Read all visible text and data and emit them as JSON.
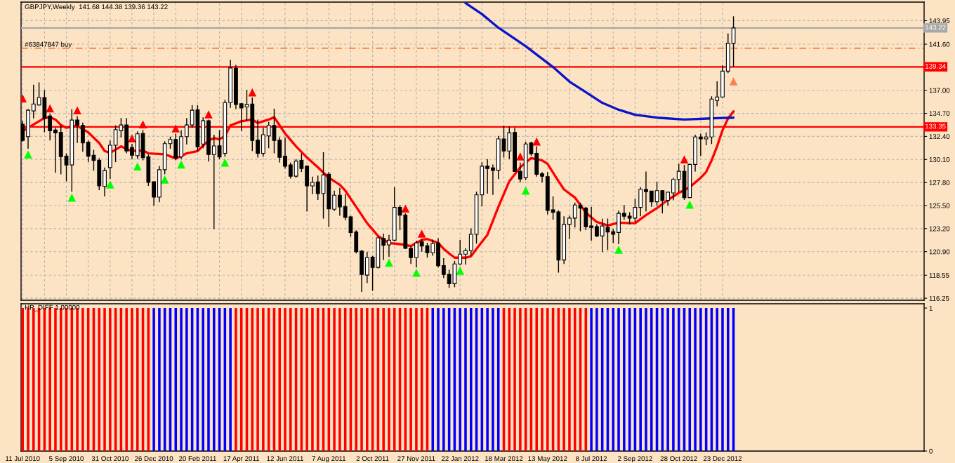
{
  "chart_data": [
    {
      "type": "candlestick",
      "title": "GBPJPY,Weekly  141.68 144.38 139.36 143.22",
      "x": [
        "2010-07-11",
        "2010-07-18",
        "2010-07-25",
        "2010-08-01",
        "2010-08-08",
        "2010-08-15",
        "2010-08-22",
        "2010-08-29",
        "2010-09-05",
        "2010-09-12",
        "2010-09-19",
        "2010-09-26",
        "2010-10-03",
        "2010-10-10",
        "2010-10-17",
        "2010-10-24",
        "2010-10-31",
        "2010-11-07",
        "2010-11-14",
        "2010-11-21",
        "2010-11-28",
        "2010-12-05",
        "2010-12-12",
        "2010-12-19",
        "2010-12-26",
        "2011-01-02",
        "2011-01-09",
        "2011-01-16",
        "2011-01-23",
        "2011-01-30",
        "2011-02-06",
        "2011-02-13",
        "2011-02-20",
        "2011-02-27",
        "2011-03-06",
        "2011-03-13",
        "2011-03-20",
        "2011-03-27",
        "2011-04-03",
        "2011-04-10",
        "2011-04-17",
        "2011-04-24",
        "2011-05-01",
        "2011-05-08",
        "2011-05-15",
        "2011-05-22",
        "2011-05-29",
        "2011-06-05",
        "2011-06-12",
        "2011-06-19",
        "2011-06-26",
        "2011-07-03",
        "2011-07-10",
        "2011-07-17",
        "2011-07-24",
        "2011-07-31",
        "2011-08-07",
        "2011-08-14",
        "2011-08-21",
        "2011-08-28",
        "2011-09-04",
        "2011-09-11",
        "2011-09-18",
        "2011-09-25",
        "2011-10-02",
        "2011-10-09",
        "2011-10-16",
        "2011-10-23",
        "2011-10-30",
        "2011-11-06",
        "2011-11-13",
        "2011-11-20",
        "2011-11-27",
        "2011-12-04",
        "2011-12-11",
        "2011-12-18",
        "2011-12-25",
        "2012-01-01",
        "2012-01-08",
        "2012-01-15",
        "2012-01-22",
        "2012-01-29",
        "2012-02-05",
        "2012-02-12",
        "2012-02-19",
        "2012-02-26",
        "2012-03-04",
        "2012-03-11",
        "2012-03-18",
        "2012-03-25",
        "2012-04-01",
        "2012-04-08",
        "2012-04-15",
        "2012-04-22",
        "2012-04-29",
        "2012-05-06",
        "2012-05-13",
        "2012-05-20",
        "2012-05-27",
        "2012-06-03",
        "2012-06-10",
        "2012-06-17",
        "2012-06-24",
        "2012-07-01",
        "2012-07-08",
        "2012-07-15",
        "2012-07-22",
        "2012-07-29",
        "2012-08-05",
        "2012-08-12",
        "2012-08-19",
        "2012-08-26",
        "2012-09-02",
        "2012-09-09",
        "2012-09-16",
        "2012-09-23",
        "2012-09-30",
        "2012-10-07",
        "2012-10-14",
        "2012-10-21",
        "2012-10-28",
        "2012-11-04",
        "2012-11-11",
        "2012-11-18",
        "2012-11-25",
        "2012-12-02",
        "2012-12-09",
        "2012-12-16",
        "2012-12-23",
        "2012-12-30",
        "2013-01-06"
      ],
      "ohlc": [
        [
          133.61,
          133.96,
          131.87,
          131.99
        ],
        [
          132.38,
          135.12,
          131.17,
          135.01
        ],
        [
          134.94,
          137.56,
          134.19,
          135.63
        ],
        [
          135.54,
          137.79,
          135.47,
          136.28
        ],
        [
          136.28,
          137.03,
          132.8,
          134.19
        ],
        [
          134.43,
          134.66,
          131.99,
          132.96
        ],
        [
          133.03,
          133.26,
          128.78,
          132.75
        ],
        [
          132.8,
          133.5,
          128.62,
          130.38
        ],
        [
          130.43,
          130.71,
          127.92,
          129.55
        ],
        [
          129.55,
          135.12,
          126.88,
          134.03
        ],
        [
          134.03,
          134.43,
          131.75,
          133.54
        ],
        [
          133.5,
          133.78,
          130.87,
          131.75
        ],
        [
          131.82,
          131.99,
          129.83,
          130.43
        ],
        [
          130.52,
          131.06,
          128.97,
          130.01
        ],
        [
          130.01,
          130.24,
          127.04,
          127.46
        ],
        [
          127.41,
          129.29,
          126.41,
          128.99
        ],
        [
          129.29,
          131.99,
          128.15,
          131.52
        ],
        [
          131.52,
          133.5,
          129.83,
          133.08
        ],
        [
          132.98,
          134.24,
          132.29,
          133.54
        ],
        [
          133.54,
          134.24,
          130.71,
          130.94
        ],
        [
          131.29,
          131.64,
          130.13,
          130.52
        ],
        [
          130.48,
          132.91,
          130.13,
          132.66
        ],
        [
          132.68,
          133.03,
          130.01,
          130.29
        ],
        [
          130.36,
          130.59,
          127.46,
          127.81
        ],
        [
          127.88,
          127.9,
          125.48,
          126.34
        ],
        [
          126.34,
          129.43,
          125.83,
          129.08
        ],
        [
          129.08,
          131.92,
          128.62,
          131.68
        ],
        [
          131.68,
          132.38,
          131.17,
          132.1
        ],
        [
          132.1,
          132.68,
          130.01,
          130.24
        ],
        [
          130.36,
          133.03,
          130.13,
          132.38
        ],
        [
          132.38,
          134.24,
          131.59,
          133.54
        ],
        [
          133.54,
          135.52,
          133.26,
          135.01
        ],
        [
          135.05,
          135.52,
          130.94,
          131.36
        ],
        [
          131.64,
          134.31,
          131.22,
          133.96
        ],
        [
          133.96,
          134.08,
          129.9,
          130.59
        ],
        [
          130.59,
          132.57,
          123.16,
          131.45
        ],
        [
          131.47,
          133.03,
          130.13,
          130.36
        ],
        [
          130.71,
          136.05,
          130.36,
          135.77
        ],
        [
          135.77,
          140.05,
          135.24,
          139.23
        ],
        [
          139.19,
          139.54,
          135.12,
          135.59
        ],
        [
          135.66,
          135.66,
          132.92,
          135.24
        ],
        [
          135.35,
          137.03,
          133.96,
          135.59
        ],
        [
          135.63,
          136.28,
          130.94,
          131.99
        ],
        [
          132.03,
          134.08,
          130.29,
          130.71
        ],
        [
          130.71,
          133.26,
          130.36,
          132.57
        ],
        [
          132.45,
          133.85,
          131.22,
          133.5
        ],
        [
          133.5,
          135.17,
          130.71,
          131.99
        ],
        [
          132.03,
          132.33,
          129.78,
          130.31
        ],
        [
          130.43,
          132.29,
          129.2,
          129.43
        ],
        [
          129.55,
          129.78,
          128.2,
          128.43
        ],
        [
          128.43,
          130.13,
          128.27,
          129.94
        ],
        [
          130.01,
          130.71,
          128.85,
          129.2
        ],
        [
          129.43,
          129.5,
          124.9,
          127.46
        ],
        [
          127.46,
          128.39,
          126.64,
          127.81
        ],
        [
          127.85,
          128.5,
          126.06,
          126.69
        ],
        [
          126.71,
          130.82,
          124.2,
          128.55
        ],
        [
          128.62,
          128.85,
          123.37,
          125.18
        ],
        [
          125.13,
          126.99,
          124.95,
          126.53
        ],
        [
          126.53,
          127.27,
          124.48,
          125.37
        ],
        [
          125.41,
          126.64,
          124.02,
          124.32
        ],
        [
          124.37,
          124.48,
          122.39,
          122.81
        ],
        [
          122.86,
          123.04,
          120.72,
          120.9
        ],
        [
          120.95,
          121.07,
          116.89,
          118.63
        ],
        [
          118.56,
          120.9,
          117.77,
          120.3
        ],
        [
          120.35,
          120.49,
          117.0,
          119.33
        ],
        [
          119.33,
          122.39,
          119.21,
          122.28
        ],
        [
          122.23,
          122.7,
          120.07,
          121.53
        ],
        [
          121.58,
          122.58,
          120.37,
          122.04
        ],
        [
          122.04,
          127.34,
          121.93,
          125.32
        ],
        [
          125.32,
          125.55,
          123.04,
          124.55
        ],
        [
          124.55,
          124.72,
          121.18,
          121.23
        ],
        [
          121.23,
          121.42,
          119.67,
          120.3
        ],
        [
          120.3,
          122.0,
          119.33,
          121.77
        ],
        [
          121.88,
          122.11,
          120.9,
          121.46
        ],
        [
          121.49,
          121.77,
          120.3,
          120.79
        ],
        [
          120.79,
          122.11,
          120.49,
          121.7
        ],
        [
          121.77,
          122.23,
          119.33,
          119.51
        ],
        [
          119.51,
          120.25,
          118.28,
          118.63
        ],
        [
          118.63,
          119.1,
          117.28,
          117.7
        ],
        [
          117.7,
          119.98,
          117.35,
          119.67
        ],
        [
          119.67,
          122.07,
          119.56,
          120.65
        ],
        [
          120.65,
          121.23,
          119.6,
          121.0
        ],
        [
          121.0,
          123.23,
          120.49,
          122.63
        ],
        [
          122.63,
          126.88,
          121.7,
          126.57
        ],
        [
          126.57,
          129.83,
          125.41,
          129.43
        ],
        [
          129.43,
          130.13,
          126.69,
          129.2
        ],
        [
          129.25,
          129.6,
          126.57,
          129.01
        ],
        [
          129.01,
          132.45,
          128.15,
          132.15
        ],
        [
          132.15,
          133.45,
          130.29,
          130.94
        ],
        [
          130.94,
          133.38,
          130.13,
          132.75
        ],
        [
          132.8,
          133.26,
          128.9,
          128.9
        ],
        [
          128.9,
          129.78,
          127.81,
          128.15
        ],
        [
          128.27,
          131.87,
          128.04,
          131.64
        ],
        [
          131.75,
          131.87,
          130.48,
          130.66
        ],
        [
          130.71,
          131.41,
          128.39,
          128.62
        ],
        [
          128.67,
          128.85,
          127.81,
          128.43
        ],
        [
          128.39,
          128.85,
          124.62,
          125.02
        ],
        [
          125.07,
          126.41,
          124.09,
          124.83
        ],
        [
          124.86,
          125.02,
          118.81,
          120.07
        ],
        [
          120.07,
          124.44,
          119.67,
          123.62
        ],
        [
          123.62,
          124.48,
          122.16,
          124.25
        ],
        [
          124.25,
          125.79,
          123.32,
          125.55
        ],
        [
          125.55,
          125.79,
          122.93,
          125.25
        ],
        [
          125.25,
          125.37,
          123.04,
          123.39
        ],
        [
          123.46,
          125.37,
          121.99,
          123.32
        ],
        [
          123.39,
          123.62,
          122.35,
          122.46
        ],
        [
          122.46,
          124.2,
          120.84,
          123.46
        ],
        [
          123.32,
          124.2,
          121.07,
          122.86
        ],
        [
          122.88,
          123.16,
          121.77,
          122.63
        ],
        [
          122.81,
          125.0,
          121.65,
          124.72
        ],
        [
          124.72,
          125.55,
          124.09,
          124.44
        ],
        [
          124.44,
          124.83,
          123.62,
          124.25
        ],
        [
          124.25,
          126.18,
          123.86,
          125.32
        ],
        [
          125.32,
          127.34,
          124.44,
          127.11
        ],
        [
          127.11,
          128.9,
          124.9,
          126.88
        ],
        [
          126.95,
          126.95,
          125.37,
          125.88
        ],
        [
          125.88,
          127.88,
          125.48,
          126.99
        ],
        [
          126.99,
          127.04,
          124.72,
          126.02
        ],
        [
          126.02,
          126.88,
          125.48,
          126.83
        ],
        [
          126.76,
          128.27,
          126.02,
          128.11
        ],
        [
          128.11,
          129.66,
          126.88,
          128.92
        ],
        [
          128.9,
          129.55,
          126.06,
          126.3
        ],
        [
          126.3,
          129.66,
          126.3,
          129.6
        ],
        [
          129.6,
          132.57,
          128.9,
          132.34
        ],
        [
          132.34,
          132.68,
          130.43,
          132.15
        ],
        [
          132.15,
          132.8,
          131.52,
          132.34
        ],
        [
          132.34,
          136.4,
          131.64,
          136.12
        ],
        [
          135.98,
          137.91,
          135.4,
          136.33
        ],
        [
          136.33,
          139.49,
          136.24,
          138.91
        ],
        [
          138.91,
          142.67,
          138.72,
          141.7
        ],
        [
          141.68,
          144.38,
          139.36,
          143.22
        ]
      ],
      "series": [
        {
          "type": "line",
          "color": "#ff0000",
          "x": [
            "2010-07-11",
            "2010-07-18",
            "2010-08-08",
            "2010-08-15",
            "2010-08-22",
            "2010-08-29",
            "2010-09-05",
            "2010-09-12",
            "2010-09-19",
            "2010-10-03",
            "2010-10-17",
            "2010-10-24",
            "2010-10-31",
            "2010-11-14",
            "2010-11-21",
            "2010-11-28",
            "2010-12-12",
            "2010-12-19",
            "2011-01-09",
            "2011-01-23",
            "2011-01-30",
            "2011-02-06",
            "2011-02-20",
            "2011-03-06",
            "2011-03-13",
            "2011-03-20",
            "2011-03-27",
            "2011-04-03",
            "2011-04-17",
            "2011-05-01",
            "2011-05-08",
            "2011-05-22",
            "2011-05-29",
            "2011-06-05",
            "2011-06-12",
            "2011-06-26",
            "2011-07-10",
            "2011-07-24",
            "2011-08-07",
            "2011-08-21",
            "2011-08-28",
            "2011-09-11",
            "2011-09-25",
            "2011-10-09",
            "2011-10-23",
            "2011-11-06",
            "2011-11-20",
            "2011-12-04",
            "2011-12-11",
            "2011-12-25",
            "2012-01-01",
            "2012-01-08",
            "2012-01-15",
            "2012-01-29",
            "2012-02-05",
            "2012-02-12",
            "2012-02-26",
            "2012-03-11",
            "2012-03-25",
            "2012-04-08",
            "2012-04-22",
            "2012-05-06",
            "2012-05-13",
            "2012-05-27",
            "2012-06-03",
            "2012-06-17",
            "2012-07-01",
            "2012-07-15",
            "2012-07-29",
            "2012-08-12",
            "2012-08-26",
            "2012-09-02",
            "2012-09-16",
            "2012-09-30",
            "2012-10-14",
            "2012-10-28",
            "2012-11-11",
            "2012-11-25",
            "2012-12-02",
            "2012-12-09",
            "2012-12-16",
            "2012-12-23",
            "2012-12-30",
            "2013-01-06"
          ],
          "values": [
            132.92,
            133.26,
            134.24,
            134.31,
            134.08,
            133.54,
            133.26,
            133.38,
            133.45,
            132.8,
            131.75,
            130.94,
            130.76,
            131.41,
            131.13,
            130.94,
            130.99,
            130.71,
            130.62,
            130.2,
            130.43,
            130.71,
            130.94,
            131.99,
            132.22,
            132.1,
            132.45,
            133.5,
            133.91,
            134.08,
            133.73,
            134.08,
            134.31,
            133.5,
            132.68,
            131.41,
            130.29,
            129.32,
            128.27,
            127.57,
            126.99,
            125.37,
            123.74,
            122.46,
            121.77,
            121.65,
            121.46,
            122.07,
            122.16,
            121.77,
            121.18,
            120.72,
            120.3,
            120.3,
            120.44,
            121.18,
            122.58,
            125.37,
            127.92,
            129.32,
            130.24,
            130.01,
            129.66,
            127.92,
            127.11,
            126.3,
            124.79,
            123.86,
            123.51,
            123.79,
            123.74,
            123.74,
            124.55,
            125.25,
            126.06,
            126.76,
            127.34,
            128.27,
            128.85,
            130.01,
            131.41,
            133.03,
            134.19,
            134.89
          ]
        },
        {
          "type": "line",
          "color": "#0a14c8",
          "x": [
            "2012-01-29",
            "2012-02-19",
            "2012-03-11",
            "2012-04-15",
            "2012-05-20",
            "2012-06-10",
            "2012-07-01",
            "2012-07-22",
            "2012-08-12",
            "2012-09-02",
            "2012-09-30",
            "2012-11-04",
            "2012-12-09",
            "2013-01-06"
          ],
          "values": [
            145.7,
            144.6,
            143.25,
            141.4,
            139.32,
            137.87,
            136.82,
            135.75,
            135.06,
            134.55,
            134.27,
            134.08,
            134.2,
            134.27
          ]
        },
        {
          "type": "scatter",
          "color": "#ff0000",
          "marker": "triangle",
          "x": [
            "2010-07-11",
            "2010-08-15",
            "2010-09-19",
            "2010-11-28",
            "2010-12-12",
            "2011-01-23",
            "2011-03-06",
            "2011-05-01",
            "2011-11-13",
            "2011-12-04",
            "2012-04-08",
            "2012-04-29",
            "2012-11-04"
          ],
          "values": [
            136.2,
            135.2,
            135.0,
            132.2,
            133.6,
            133.2,
            134.6,
            136.8,
            125.2,
            122.7,
            130.4,
            131.9,
            130.1
          ]
        },
        {
          "type": "scatter",
          "color": "#00ff00",
          "marker": "triangle",
          "x": [
            "2010-07-18",
            "2010-09-12",
            "2010-10-31",
            "2010-12-05",
            "2011-01-09",
            "2011-01-30",
            "2011-03-27",
            "2011-10-23",
            "2011-11-27",
            "2012-01-22",
            "2012-04-15",
            "2012-08-12",
            "2012-11-11"
          ],
          "values": [
            130.6,
            126.3,
            127.6,
            129.4,
            128.1,
            129.6,
            129.8,
            119.8,
            118.8,
            119.0,
            127.0,
            121.1,
            125.6
          ]
        },
        {
          "type": "scatter",
          "color": "#ff7f50",
          "marker": "triangle",
          "x": [
            "2013-01-06"
          ],
          "values": [
            137.9
          ]
        }
      ],
      "ref_lines": [
        {
          "axis": "y",
          "value": 143.22,
          "label": "143.22",
          "color": "#a8a8a8"
        },
        {
          "axis": "y",
          "value": 141.21,
          "label": "#63847847 buy",
          "color": "#ff4500",
          "line_style": "dashed"
        },
        {
          "axis": "y",
          "value": 139.34,
          "label": "139.34",
          "color": "#ff0000"
        },
        {
          "axis": "y",
          "value": 133.35,
          "label": "133.35",
          "color": "#ff0000"
        }
      ],
      "xlim": [
        "2010-07-09",
        "2013-09-07"
      ],
      "ylim": [
        116.05,
        145.8
      ],
      "xticks": [
        {
          "value": "2010-07-11",
          "label": null
        },
        {
          "value": "2010-08-08",
          "label": null
        },
        {
          "value": "2010-09-05",
          "label": null
        },
        {
          "value": "2010-10-03",
          "label": null
        },
        {
          "value": "2010-10-31",
          "label": null
        },
        {
          "value": "2010-11-28",
          "label": null
        },
        {
          "value": "2010-12-26",
          "label": null
        },
        {
          "value": "2011-01-23",
          "label": null
        },
        {
          "value": "2011-02-20",
          "label": null
        },
        {
          "value": "2011-03-20",
          "label": null
        },
        {
          "value": "2011-04-17",
          "label": null
        },
        {
          "value": "2011-05-15",
          "label": null
        },
        {
          "value": "2011-06-12",
          "label": null
        },
        {
          "value": "2011-07-10",
          "label": null
        },
        {
          "value": "2011-08-07",
          "label": null
        },
        {
          "value": "2011-09-04",
          "label": null
        },
        {
          "value": "2011-10-02",
          "label": null
        },
        {
          "value": "2011-10-30",
          "label": null
        },
        {
          "value": "2011-11-27",
          "label": null
        },
        {
          "value": "2011-12-25",
          "label": null
        },
        {
          "value": "2012-01-22",
          "label": null
        },
        {
          "value": "2012-02-19",
          "label": null
        },
        {
          "value": "2012-03-18",
          "label": null
        },
        {
          "value": "2012-04-15",
          "label": null
        },
        {
          "value": "2012-05-13",
          "label": null
        },
        {
          "value": "2012-06-10",
          "label": null
        },
        {
          "value": "2012-07-08",
          "label": null
        },
        {
          "value": "2012-08-05",
          "label": null
        },
        {
          "value": "2012-09-02",
          "label": null
        },
        {
          "value": "2012-09-30",
          "label": null
        },
        {
          "value": "2012-10-28",
          "label": null
        },
        {
          "value": "2012-11-25",
          "label": null
        },
        {
          "value": "2012-12-23",
          "label": null
        }
      ],
      "yticks": [
        143.95,
        {
          "value": 141.6,
          "label": "141.60"
        },
        {
          "value": 139.3,
          "label": null
        },
        {
          "value": 137.0,
          "label": "137.00"
        },
        {
          "value": 134.7,
          "label": "134.70"
        },
        {
          "value": 132.4,
          "label": "132.40"
        },
        {
          "value": 130.1,
          "label": "130.10"
        },
        {
          "value": 127.8,
          "label": "127.80"
        },
        {
          "value": 125.5,
          "label": "125.50"
        },
        {
          "value": 123.2,
          "label": "123.20"
        },
        {
          "value": 120.9,
          "label": "120.90"
        },
        118.55,
        116.25
      ],
      "grid": true,
      "tick_labels": "y"
    },
    {
      "type": "bar",
      "title": "HP_DIFF 1.00000",
      "x": [
        "2010-07-11",
        "2010-07-18",
        "2010-07-25",
        "2010-08-01",
        "2010-08-08",
        "2010-08-15",
        "2010-08-22",
        "2010-08-29",
        "2010-09-05",
        "2010-09-12",
        "2010-09-19",
        "2010-09-26",
        "2010-10-03",
        "2010-10-10",
        "2010-10-17",
        "2010-10-24",
        "2010-10-31",
        "2010-11-07",
        "2010-11-14",
        "2010-11-21",
        "2010-11-28",
        "2010-12-05",
        "2010-12-12",
        "2010-12-19",
        "2010-12-26",
        "2011-01-02",
        "2011-01-09",
        "2011-01-16",
        "2011-01-23",
        "2011-01-30",
        "2011-02-06",
        "2011-02-13",
        "2011-02-20",
        "2011-02-27",
        "2011-03-06",
        "2011-03-13",
        "2011-03-20",
        "2011-03-27",
        "2011-04-03",
        "2011-04-10",
        "2011-04-17",
        "2011-04-24",
        "2011-05-01",
        "2011-05-08",
        "2011-05-15",
        "2011-05-22",
        "2011-05-29",
        "2011-06-05",
        "2011-06-12",
        "2011-06-19",
        "2011-06-26",
        "2011-07-03",
        "2011-07-10",
        "2011-07-17",
        "2011-07-24",
        "2011-07-31",
        "2011-08-07",
        "2011-08-14",
        "2011-08-21",
        "2011-08-28",
        "2011-09-04",
        "2011-09-11",
        "2011-09-18",
        "2011-09-25",
        "2011-10-02",
        "2011-10-09",
        "2011-10-16",
        "2011-10-23",
        "2011-10-30",
        "2011-11-06",
        "2011-11-13",
        "2011-11-20",
        "2011-11-27",
        "2011-12-04",
        "2011-12-11",
        "2011-12-18",
        "2011-12-25",
        "2012-01-01",
        "2012-01-08",
        "2012-01-15",
        "2012-01-22",
        "2012-01-29",
        "2012-02-05",
        "2012-02-12",
        "2012-02-19",
        "2012-02-26",
        "2012-03-04",
        "2012-03-11",
        "2012-03-18",
        "2012-03-25",
        "2012-04-01",
        "2012-04-08",
        "2012-04-15",
        "2012-04-22",
        "2012-04-29",
        "2012-05-06",
        "2012-05-13",
        "2012-05-20",
        "2012-05-27",
        "2012-06-03",
        "2012-06-10",
        "2012-06-17",
        "2012-06-24",
        "2012-07-01",
        "2012-07-08",
        "2012-07-15",
        "2012-07-22",
        "2012-07-29",
        "2012-08-05",
        "2012-08-12",
        "2012-08-19",
        "2012-08-26",
        "2012-09-02",
        "2012-09-09",
        "2012-09-16",
        "2012-09-23",
        "2012-09-30",
        "2012-10-07",
        "2012-10-14",
        "2012-10-21",
        "2012-10-28",
        "2012-11-04",
        "2012-11-11",
        "2012-11-18",
        "2012-11-25",
        "2012-12-02",
        "2012-12-09",
        "2012-12-16",
        "2012-12-23",
        "2012-12-30",
        "2013-01-06"
      ],
      "values": [
        1,
        1,
        1,
        1,
        1,
        1,
        1,
        1,
        1,
        1,
        1,
        1,
        1,
        1,
        1,
        1,
        1,
        1,
        1,
        1,
        1,
        1,
        1,
        1,
        1,
        1,
        1,
        1,
        1,
        1,
        1,
        1,
        1,
        1,
        1,
        1,
        1,
        1,
        1,
        1,
        1,
        1,
        1,
        1,
        1,
        1,
        1,
        1,
        1,
        1,
        1,
        1,
        1,
        1,
        1,
        1,
        1,
        1,
        1,
        1,
        1,
        1,
        1,
        1,
        1,
        1,
        1,
        1,
        1,
        1,
        1,
        1,
        1,
        1,
        1,
        1,
        1,
        1,
        1,
        1,
        1,
        1,
        1,
        1,
        1,
        1,
        1,
        1,
        1,
        1,
        1,
        1,
        1,
        1,
        1,
        1,
        1,
        1,
        1,
        1,
        1,
        1,
        1,
        1,
        1,
        1,
        1,
        1,
        1,
        1,
        1,
        1,
        1,
        1,
        1,
        1,
        1,
        1,
        1,
        1,
        1,
        1,
        1,
        1,
        1,
        1,
        1,
        1,
        1,
        1,
        1
      ],
      "colors": [
        "#ff0000",
        "#ff0000",
        "#ff0000",
        "#ff0000",
        "#ff0000",
        "#ff0000",
        "#ff0000",
        "#ff0000",
        "#ff0000",
        "#ff0000",
        "#ff0000",
        "#ff0000",
        "#ff0000",
        "#ff0000",
        "#ff0000",
        "#ff0000",
        "#ff0000",
        "#ff0000",
        "#ff0000",
        "#ff0000",
        "#ff0000",
        "#ff0000",
        "#ff0000",
        "#ff0000",
        "#0000ff",
        "#0000ff",
        "#0000ff",
        "#0000ff",
        "#0000ff",
        "#0000ff",
        "#0000ff",
        "#0000ff",
        "#0000ff",
        "#0000ff",
        "#0000ff",
        "#0000ff",
        "#0000ff",
        "#0000ff",
        "#0000ff",
        "#ff0000",
        "#ff0000",
        "#ff0000",
        "#ff0000",
        "#ff0000",
        "#ff0000",
        "#ff0000",
        "#ff0000",
        "#ff0000",
        "#ff0000",
        "#ff0000",
        "#ff0000",
        "#ff0000",
        "#ff0000",
        "#ff0000",
        "#ff0000",
        "#ff0000",
        "#ff0000",
        "#ff0000",
        "#ff0000",
        "#ff0000",
        "#ff0000",
        "#ff0000",
        "#ff0000",
        "#ff0000",
        "#ff0000",
        "#ff0000",
        "#ff0000",
        "#ff0000",
        "#ff0000",
        "#ff0000",
        "#ff0000",
        "#ff0000",
        "#ff0000",
        "#ff0000",
        "#ff0000",
        "#0000ff",
        "#0000ff",
        "#0000ff",
        "#0000ff",
        "#0000ff",
        "#0000ff",
        "#0000ff",
        "#0000ff",
        "#0000ff",
        "#0000ff",
        "#0000ff",
        "#0000ff",
        "#0000ff",
        "#ff0000",
        "#ff0000",
        "#ff0000",
        "#ff0000",
        "#ff0000",
        "#ff0000",
        "#ff0000",
        "#ff0000",
        "#ff0000",
        "#ff0000",
        "#ff0000",
        "#ff0000",
        "#ff0000",
        "#ff0000",
        "#ff0000",
        "#ff0000",
        "#0000ff",
        "#0000ff",
        "#0000ff",
        "#0000ff",
        "#0000ff",
        "#0000ff",
        "#0000ff",
        "#0000ff",
        "#0000ff",
        "#0000ff",
        "#0000ff",
        "#0000ff",
        "#0000ff",
        "#0000ff",
        "#0000ff",
        "#0000ff",
        "#0000ff",
        "#0000ff",
        "#0000ff",
        "#0000ff",
        "#0000ff",
        "#0000ff",
        "#0000ff",
        "#0000ff",
        "#0000ff",
        "#0000ff",
        "#0000ff"
      ],
      "xlim": [
        "2010-07-09",
        "2013-09-07"
      ],
      "ylim": [
        0,
        1.03
      ],
      "yticks": [
        0,
        1
      ],
      "xticks": [
        {
          "value": "2010-07-11",
          "label": "11 Jul 2010"
        },
        {
          "value": "2010-09-05",
          "label": "5 Sep 2010"
        },
        {
          "value": "2010-10-31",
          "label": "31 Oct 2010"
        },
        {
          "value": "2010-12-26",
          "label": "26 Dec 2010"
        },
        {
          "value": "2011-02-20",
          "label": "20 Feb 2011"
        },
        {
          "value": "2011-04-17",
          "label": "17 Apr 2011"
        },
        {
          "value": "2011-06-12",
          "label": "12 Jun 2011"
        },
        {
          "value": "2011-08-07",
          "label": "7 Aug 2011"
        },
        {
          "value": "2011-10-02",
          "label": "2 Oct 2011"
        },
        {
          "value": "2011-11-27",
          "label": "27 Nov 2011"
        },
        {
          "value": "2012-01-22",
          "label": "22 Jan 2012"
        },
        {
          "value": "2012-03-18",
          "label": "18 Mar 2012"
        },
        {
          "value": "2012-05-13",
          "label": "13 May 2012"
        },
        {
          "value": "2012-07-08",
          "label": "8 Jul 2012"
        },
        {
          "value": "2012-09-02",
          "label": "2 Sep 2012"
        },
        {
          "value": "2012-10-28",
          "label": "28 Oct 2012"
        },
        {
          "value": "2012-12-23",
          "label": "23 Dec 2012"
        }
      ]
    }
  ]
}
